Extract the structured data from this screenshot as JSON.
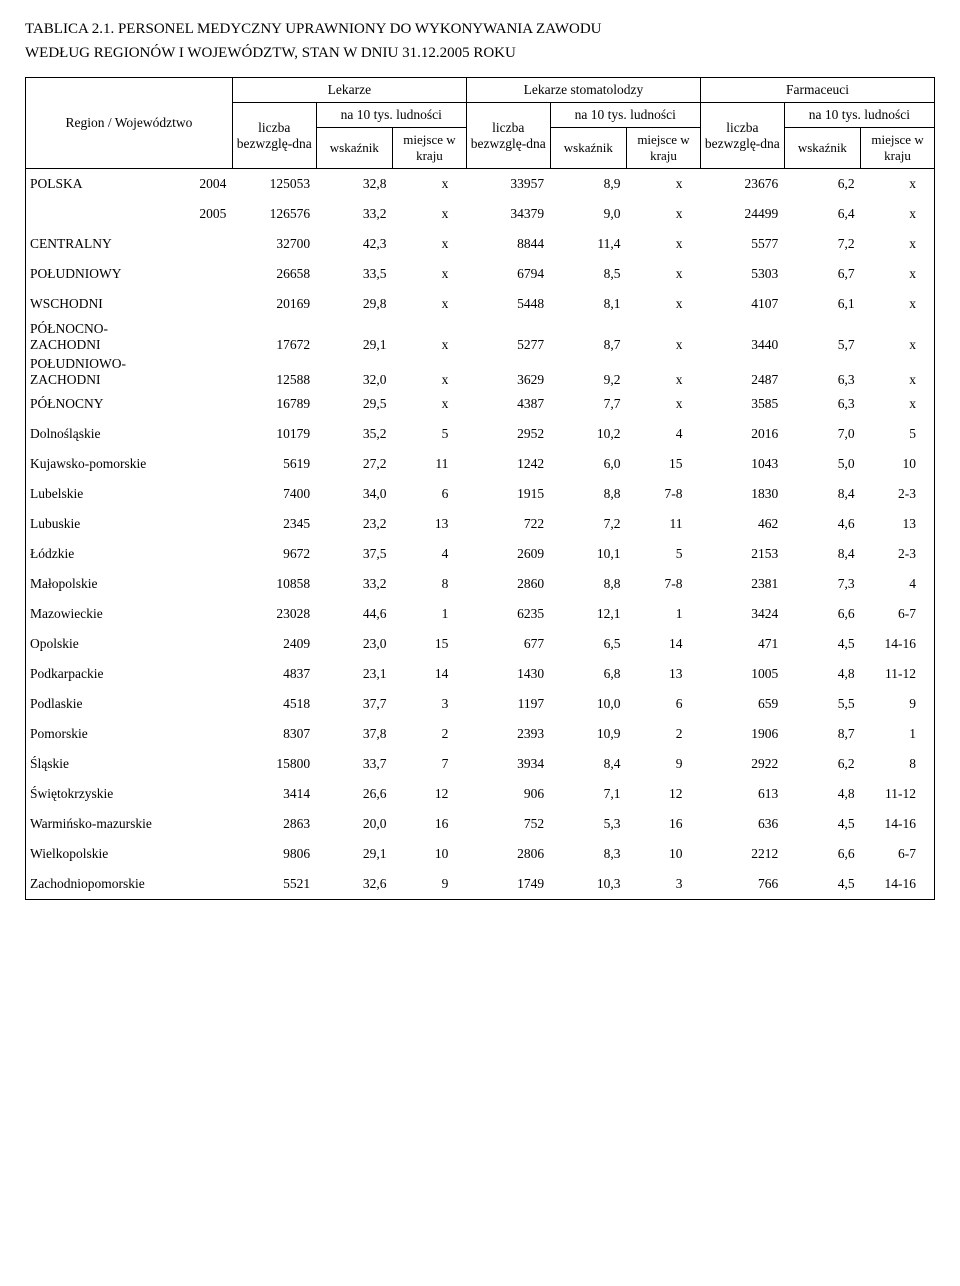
{
  "title_line1": "TABLICA 2.1. PERSONEL MEDYCZNY UPRAWNIONY DO WYKONYWANIA ZAWODU",
  "title_line2": "WEDŁUG REGIONÓW I WOJEWÓDZTW, STAN W DNIU 31.12.2005 ROKU",
  "headers": {
    "region": "Region / Województwo",
    "groups": [
      "Lekarze",
      "Lekarze stomatolodzy",
      "Farmaceuci"
    ],
    "liczba": "liczba bezwzglę-dna",
    "na10": "na 10 tys. ludności",
    "wskaznik": "wskaźnik",
    "miejsce": "miejsce w kraju"
  },
  "rows": [
    {
      "label": "POLSKA",
      "year": "2004",
      "v": [
        "125053",
        "32,8",
        "x",
        "33957",
        "8,9",
        "x",
        "23676",
        "6,2",
        "x"
      ]
    },
    {
      "label": "",
      "year": "2005",
      "v": [
        "126576",
        "33,2",
        "x",
        "34379",
        "9,0",
        "x",
        "24499",
        "6,4",
        "x"
      ]
    },
    {
      "label": "CENTRALNY",
      "year": "",
      "v": [
        "32700",
        "42,3",
        "x",
        "8844",
        "11,4",
        "x",
        "5577",
        "7,2",
        "x"
      ]
    },
    {
      "label": "POŁUDNIOWY",
      "year": "",
      "v": [
        "26658",
        "33,5",
        "x",
        "6794",
        "8,5",
        "x",
        "5303",
        "6,7",
        "x"
      ]
    },
    {
      "label": "WSCHODNI",
      "year": "",
      "v": [
        "20169",
        "29,8",
        "x",
        "5448",
        "8,1",
        "x",
        "4107",
        "6,1",
        "x"
      ]
    },
    {
      "label": "PÓŁNOCNO-\nZACHODNI",
      "year": "",
      "v": [
        "17672",
        "29,1",
        "x",
        "5277",
        "8,7",
        "x",
        "3440",
        "5,7",
        "x"
      ],
      "multi": true
    },
    {
      "label": "POŁUDNIOWO-\nZACHODNI",
      "year": "",
      "v": [
        "12588",
        "32,0",
        "x",
        "3629",
        "9,2",
        "x",
        "2487",
        "6,3",
        "x"
      ],
      "multi": true
    },
    {
      "label": "PÓŁNOCNY",
      "year": "",
      "v": [
        "16789",
        "29,5",
        "x",
        "4387",
        "7,7",
        "x",
        "3585",
        "6,3",
        "x"
      ]
    },
    {
      "label": "Dolnośląskie",
      "year": "",
      "v": [
        "10179",
        "35,2",
        "5",
        "2952",
        "10,2",
        "4",
        "2016",
        "7,0",
        "5"
      ]
    },
    {
      "label": "Kujawsko-pomorskie",
      "year": "",
      "v": [
        "5619",
        "27,2",
        "11",
        "1242",
        "6,0",
        "15",
        "1043",
        "5,0",
        "10"
      ]
    },
    {
      "label": "Lubelskie",
      "year": "",
      "v": [
        "7400",
        "34,0",
        "6",
        "1915",
        "8,8",
        "7-8",
        "1830",
        "8,4",
        "2-3"
      ]
    },
    {
      "label": "Lubuskie",
      "year": "",
      "v": [
        "2345",
        "23,2",
        "13",
        "722",
        "7,2",
        "11",
        "462",
        "4,6",
        "13"
      ]
    },
    {
      "label": "Łódzkie",
      "year": "",
      "v": [
        "9672",
        "37,5",
        "4",
        "2609",
        "10,1",
        "5",
        "2153",
        "8,4",
        "2-3"
      ]
    },
    {
      "label": "Małopolskie",
      "year": "",
      "v": [
        "10858",
        "33,2",
        "8",
        "2860",
        "8,8",
        "7-8",
        "2381",
        "7,3",
        "4"
      ]
    },
    {
      "label": "Mazowieckie",
      "year": "",
      "v": [
        "23028",
        "44,6",
        "1",
        "6235",
        "12,1",
        "1",
        "3424",
        "6,6",
        "6-7"
      ]
    },
    {
      "label": "Opolskie",
      "year": "",
      "v": [
        "2409",
        "23,0",
        "15",
        "677",
        "6,5",
        "14",
        "471",
        "4,5",
        "14-16"
      ]
    },
    {
      "label": "Podkarpackie",
      "year": "",
      "v": [
        "4837",
        "23,1",
        "14",
        "1430",
        "6,8",
        "13",
        "1005",
        "4,8",
        "11-12"
      ]
    },
    {
      "label": "Podlaskie",
      "year": "",
      "v": [
        "4518",
        "37,7",
        "3",
        "1197",
        "10,0",
        "6",
        "659",
        "5,5",
        "9"
      ]
    },
    {
      "label": "Pomorskie",
      "year": "",
      "v": [
        "8307",
        "37,8",
        "2",
        "2393",
        "10,9",
        "2",
        "1906",
        "8,7",
        "1"
      ]
    },
    {
      "label": "Śląskie",
      "year": "",
      "v": [
        "15800",
        "33,7",
        "7",
        "3934",
        "8,4",
        "9",
        "2922",
        "6,2",
        "8"
      ]
    },
    {
      "label": "Świętokrzyskie",
      "year": "",
      "v": [
        "3414",
        "26,6",
        "12",
        "906",
        "7,1",
        "12",
        "613",
        "4,8",
        "11-12"
      ]
    },
    {
      "label": "Warmińsko-mazurskie",
      "year": "",
      "v": [
        "2863",
        "20,0",
        "16",
        "752",
        "5,3",
        "16",
        "636",
        "4,5",
        "14-16"
      ]
    },
    {
      "label": "Wielkopolskie",
      "year": "",
      "v": [
        "9806",
        "29,1",
        "10",
        "2806",
        "8,3",
        "10",
        "2212",
        "6,6",
        "6-7"
      ]
    },
    {
      "label": "Zachodniopomorskie",
      "year": "",
      "v": [
        "5521",
        "32,6",
        "9",
        "1749",
        "10,3",
        "3",
        "766",
        "4,5",
        "14-16"
      ]
    }
  ]
}
